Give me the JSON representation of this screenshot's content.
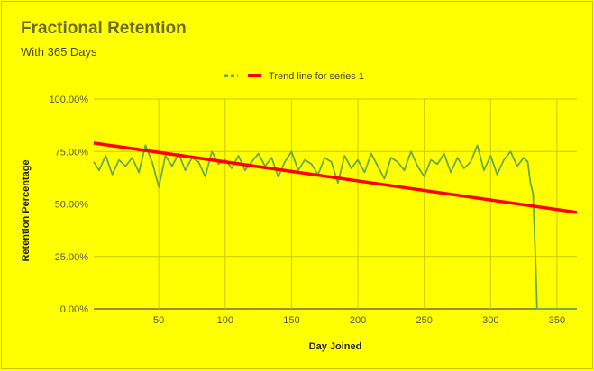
{
  "chart_data": {
    "type": "line",
    "title": "Fractional Retention",
    "subtitle": "With 365 Days",
    "xlabel": "Day Joined",
    "ylabel": "Retention Percentage",
    "xlim": [
      1,
      365
    ],
    "ylim": [
      0,
      1
    ],
    "x_ticks": [
      50,
      100,
      150,
      200,
      250,
      300,
      350
    ],
    "y_ticks": [
      "0.00%",
      "25.00%",
      "50.00%",
      "75.00%",
      "100.00%"
    ],
    "grid": true,
    "legend_position": "top",
    "series": [
      {
        "name": "",
        "color": "#6aa84f",
        "x": [
          1,
          5,
          10,
          15,
          20,
          25,
          30,
          35,
          40,
          45,
          50,
          55,
          60,
          65,
          70,
          75,
          80,
          85,
          90,
          95,
          100,
          105,
          110,
          115,
          120,
          125,
          130,
          135,
          140,
          145,
          150,
          155,
          160,
          165,
          170,
          175,
          180,
          185,
          190,
          195,
          200,
          205,
          210,
          215,
          220,
          225,
          230,
          235,
          240,
          245,
          250,
          255,
          260,
          265,
          270,
          275,
          280,
          285,
          290,
          295,
          300,
          305,
          310,
          315,
          320,
          325,
          328,
          330,
          332,
          334,
          335,
          336,
          340,
          345,
          350,
          355,
          360,
          365
        ],
        "values": [
          0.7,
          0.66,
          0.73,
          0.64,
          0.71,
          0.68,
          0.72,
          0.65,
          0.78,
          0.7,
          0.58,
          0.73,
          0.68,
          0.74,
          0.66,
          0.72,
          0.7,
          0.63,
          0.75,
          0.69,
          0.71,
          0.67,
          0.73,
          0.66,
          0.7,
          0.74,
          0.68,
          0.72,
          0.63,
          0.7,
          0.75,
          0.66,
          0.71,
          0.69,
          0.64,
          0.72,
          0.7,
          0.6,
          0.73,
          0.67,
          0.71,
          0.65,
          0.74,
          0.68,
          0.62,
          0.72,
          0.7,
          0.66,
          0.75,
          0.68,
          0.63,
          0.71,
          0.69,
          0.74,
          0.65,
          0.72,
          0.67,
          0.7,
          0.78,
          0.66,
          0.73,
          0.64,
          0.71,
          0.75,
          0.68,
          0.72,
          0.7,
          0.6,
          0.55,
          0.2,
          0.0,
          0.0,
          0.0,
          0.0,
          0.0,
          0.0,
          0.0,
          0.0
        ]
      },
      {
        "name": "Trend line for series 1",
        "color": "#ff0000",
        "x": [
          1,
          365
        ],
        "values": [
          0.79,
          0.46
        ]
      }
    ]
  }
}
